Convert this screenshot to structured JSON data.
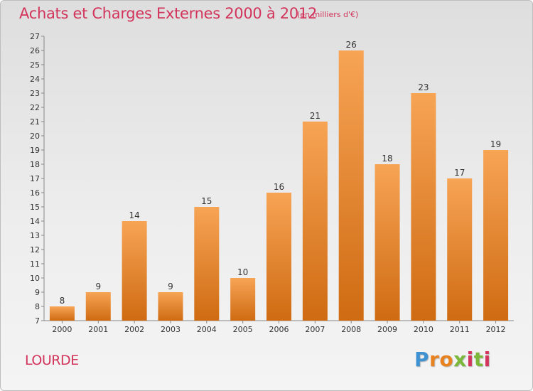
{
  "header": {
    "title": "Achats et Charges Externes 2000 à 2012",
    "subtitle": "(en milliers d'€)"
  },
  "footer": {
    "commune": "LOURDE",
    "logo_letters": [
      "P",
      "r",
      "o",
      "x",
      "i",
      "t",
      "i"
    ],
    "logo_colors": [
      "#3f92d2",
      "#e8821f",
      "#e8821f",
      "#7bb83a",
      "#d2345c",
      "#7bb83a",
      "#d2345c"
    ]
  },
  "colors": {
    "bar_top": "#f7a455",
    "bar_bottom": "#cf6b12",
    "title": "#d2345c"
  },
  "chart_data": {
    "type": "bar",
    "title": "Achats et Charges Externes 2000 à 2012",
    "subtitle": "(en milliers d'€)",
    "categories": [
      "2000",
      "2001",
      "2002",
      "2003",
      "2004",
      "2005",
      "2006",
      "2007",
      "2008",
      "2009",
      "2010",
      "2011",
      "2012"
    ],
    "values": [
      8,
      9,
      14,
      9,
      15,
      10,
      16,
      21,
      26,
      18,
      23,
      17,
      19
    ],
    "ylim": [
      7,
      27
    ],
    "yticks": [
      7,
      8,
      9,
      10,
      11,
      12,
      13,
      14,
      15,
      16,
      17,
      18,
      19,
      20,
      21,
      22,
      23,
      24,
      25,
      26,
      27
    ],
    "grid": false,
    "legend": "none",
    "xlabel": "",
    "ylabel": ""
  }
}
